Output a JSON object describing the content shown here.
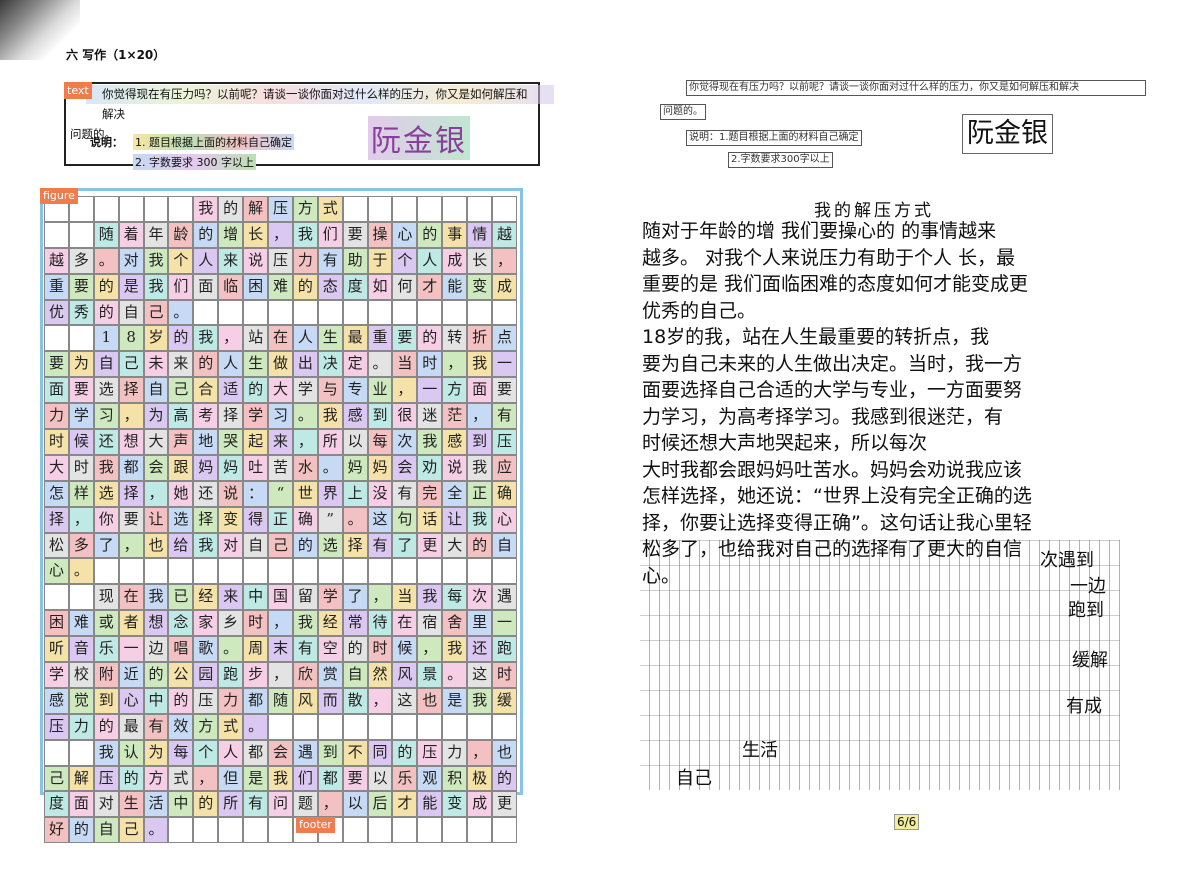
{
  "left_page": {
    "section_title": "六 写作（1×20）",
    "tag_label": "text",
    "prompt_line1": "你觉得现在有压力吗？以前呢？请谈一谈你面对过什么样的压力，你又是如何解压和解决",
    "prompt_line2": "问题的。",
    "note_label": "说明：",
    "note_item1": "1. 题目根据上面的材料自己确定",
    "note_item2": "2. 字数要求 300 字以上",
    "signature": "阮金银",
    "figure_label": "figure",
    "footer_label": "footer",
    "grid_rows": [
      "      我的解压方式      ",
      "  随着年龄的增长，我们要操心的事情越来",
      "越多。对我个人来说压力有助于个人成长，最",
      "重要的是我们面临困难的态度如何才能变成更",
      "优秀的自己。              ",
      "  18岁的我，站在人生最重要的转折点，我",
      "要为自己未来的人生做出决定。当时，我一方",
      "面要选择自己合适的大学与专业，一方面要努",
      "力学习，为高考择学习。我感到很迷茫，有",
      "时候还想大声地哭起来，所以每次我感到压力",
      "大时我都会跟妈妈吐苦水。妈妈会劝说我应该",
      "怎样选择，她还说：“世界上没有完全正确的选",
      "择，你要让选择变得正确”。这句话让我心里轻",
      "松多了，也给我对自己的选择有了更大的自信",
      "心。                 ",
      "  现在我已经来中国留学了，当我每次遇到",
      "困难或者想念家乡时，我经常待在宿舍里一边",
      "听音乐一边唱歌。周末有空的时候，我还跑到",
      "学校附近的公园跑步，欣赏自然风景。这时我",
      "感觉到心中的压力都随风而散，这也是我缓解",
      "压力的最有效方式。           ",
      "  我认为每个人都会遇到不同的压力，也有自",
      "己解压的方式，但是我们都要以乐观积极的态",
      "度面对生活中的所有问题，以后才能变成更",
      "好的自己。              "
    ]
  },
  "right_page": {
    "prompt_line1": "你觉得现在有压力吗？以前呢？请谈一谈你面对过什么样的压力，你又是如何解压和解决",
    "prompt_line2": "问题的。",
    "note_item1": "说明：1.题目根据上面的材料自己确定",
    "note_item2": "2.字数要求300字以上",
    "signature": "阮金银",
    "title": "我的解压方式",
    "body_lines": [
      "  随对于年龄的增  我们要操心的  的事情越来",
      "越多。  对我个人来说压力有助于个人  长，最",
      "重要的是  我们面临困难的态度如何才能变成更",
      "优秀的自己。",
      "    18岁的我，站在人生最重要的转折点，我",
      "要为自己未来的人生做出决定。当时，我一方",
      "面要选择自己合适的大学与专业，一方面要努",
      "力学习，为高考择学习。我感到很迷茫，有",
      "时候还想大声地哭起来，所以每次",
      "大时我都会跟妈妈吐苦水。妈妈会劝说我应该",
      "怎样选择，她还说：“世界上没有完全正确的选",
      "择，你要让选择变得正确”。这句话让我心里轻",
      "松多了，也给我对自己的选择有了更大的自信",
      "心。"
    ],
    "fragment_a": "次遇到",
    "fragment_b": "一边",
    "fragment_c": "跑到",
    "fragment_d": "缓解",
    "fragment_e": "生活",
    "fragment_f": "有成",
    "fragment_g": "自己",
    "page_number": "6/6"
  }
}
